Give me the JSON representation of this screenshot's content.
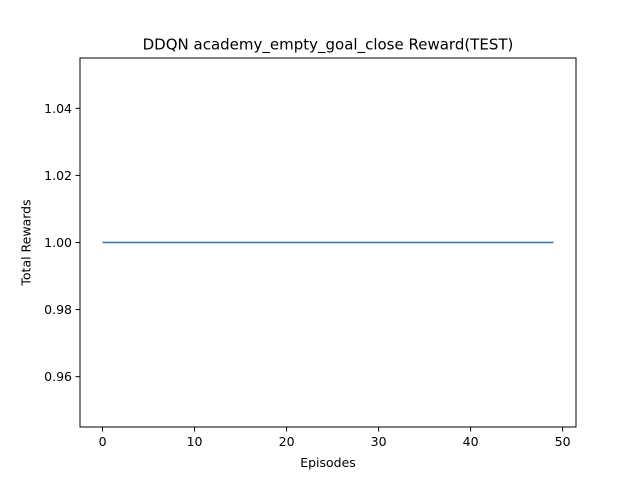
{
  "chart_data": {
    "type": "line",
    "title": "DDQN academy_empty_goal_close Reward(TEST)",
    "xlabel": "Episodes",
    "ylabel": "Total Rewards",
    "xlim": [
      -2.45,
      51.45
    ],
    "ylim": [
      0.945,
      1.055
    ],
    "xticks": [
      0,
      10,
      20,
      30,
      40,
      50
    ],
    "yticks": [
      0.96,
      0.98,
      1.0,
      1.02,
      1.04
    ],
    "xtick_labels": [
      "0",
      "10",
      "20",
      "30",
      "40",
      "50"
    ],
    "ytick_labels": [
      "0.96",
      "0.98",
      "1.00",
      "1.02",
      "1.04"
    ],
    "grid": false,
    "series": [
      {
        "color": "#1f77b4",
        "x": [
          0,
          1,
          2,
          3,
          4,
          5,
          6,
          7,
          8,
          9,
          10,
          11,
          12,
          13,
          14,
          15,
          16,
          17,
          18,
          19,
          20,
          21,
          22,
          23,
          24,
          25,
          26,
          27,
          28,
          29,
          30,
          31,
          32,
          33,
          34,
          35,
          36,
          37,
          38,
          39,
          40,
          41,
          42,
          43,
          44,
          45,
          46,
          47,
          48,
          49
        ],
        "values": [
          1,
          1,
          1,
          1,
          1,
          1,
          1,
          1,
          1,
          1,
          1,
          1,
          1,
          1,
          1,
          1,
          1,
          1,
          1,
          1,
          1,
          1,
          1,
          1,
          1,
          1,
          1,
          1,
          1,
          1,
          1,
          1,
          1,
          1,
          1,
          1,
          1,
          1,
          1,
          1,
          1,
          1,
          1,
          1,
          1,
          1,
          1,
          1,
          1,
          1
        ]
      }
    ]
  }
}
